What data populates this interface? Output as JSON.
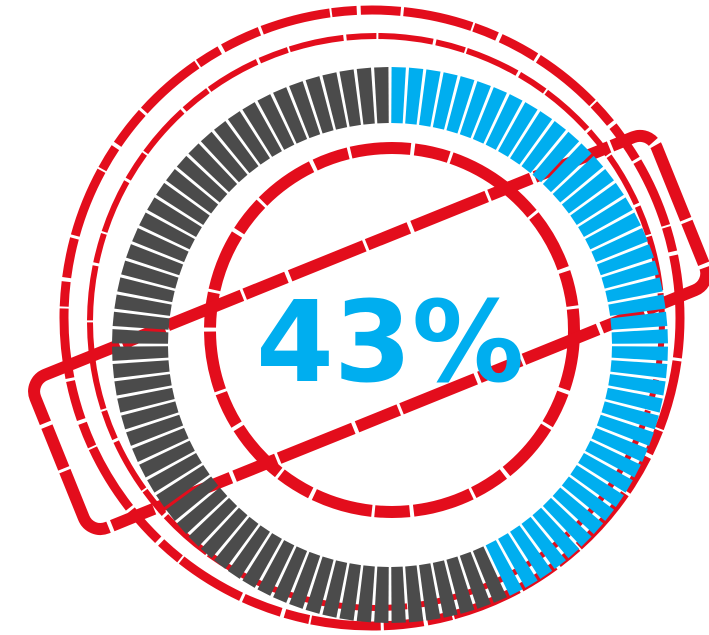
{
  "chart_data": {
    "type": "gauge",
    "values": [
      43
    ],
    "value_labels": [
      "43%"
    ],
    "ylim": [
      0,
      100
    ],
    "color": "#00aeef",
    "track_color": "#4b4b4b"
  }
}
